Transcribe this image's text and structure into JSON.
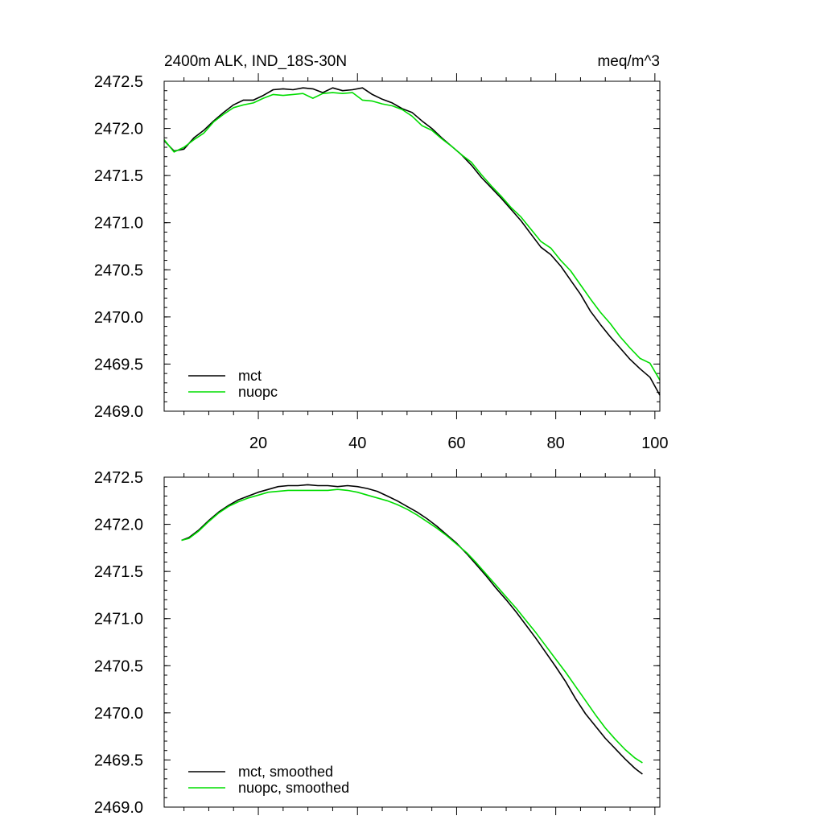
{
  "chart_data": [
    {
      "type": "line",
      "title_left": "2400m ALK, IND_18S-30N",
      "title_right": "meq/m^3",
      "xlim": [
        1,
        101
      ],
      "ylim": [
        2469.0,
        2472.5
      ],
      "xticks": [
        20,
        40,
        60,
        80,
        100
      ],
      "yticks": [
        2469.0,
        2469.5,
        2470.0,
        2470.5,
        2471.0,
        2471.5,
        2472.0,
        2472.5
      ],
      "ytick_labels": [
        "2469.0",
        "2469.5",
        "2470.0",
        "2470.5",
        "2471.0",
        "2471.5",
        "2472.0",
        "2472.5"
      ],
      "xtick_labels": [
        "20",
        "40",
        "60",
        "80",
        "100"
      ],
      "legend_position": "bottom-left",
      "series": [
        {
          "name": "mct",
          "color": "#000000",
          "x": [
            1,
            3,
            5,
            7,
            9,
            11,
            13,
            15,
            17,
            19,
            21,
            23,
            25,
            27,
            29,
            31,
            33,
            35,
            37,
            39,
            41,
            43,
            45,
            47,
            49,
            51,
            53,
            55,
            57,
            59,
            61,
            63,
            65,
            67,
            69,
            71,
            73,
            75,
            77,
            79,
            81,
            83,
            85,
            87,
            89,
            91,
            93,
            95,
            97,
            99,
            101
          ],
          "y": [
            2471.87,
            2471.76,
            2471.78,
            2471.9,
            2471.98,
            2472.08,
            2472.17,
            2472.25,
            2472.3,
            2472.3,
            2472.35,
            2472.41,
            2472.42,
            2472.41,
            2472.43,
            2472.42,
            2472.38,
            2472.43,
            2472.4,
            2472.41,
            2472.43,
            2472.36,
            2472.31,
            2472.27,
            2472.21,
            2472.17,
            2472.08,
            2472.0,
            2471.9,
            2471.81,
            2471.72,
            2471.61,
            2471.48,
            2471.37,
            2471.26,
            2471.14,
            2471.02,
            2470.88,
            2470.74,
            2470.66,
            2470.54,
            2470.39,
            2470.24,
            2470.06,
            2469.92,
            2469.79,
            2469.67,
            2469.55,
            2469.45,
            2469.36,
            2469.17
          ]
        },
        {
          "name": "nuopc",
          "color": "#00dd00",
          "x": [
            1,
            3,
            5,
            7,
            9,
            11,
            13,
            15,
            17,
            19,
            21,
            23,
            25,
            27,
            29,
            31,
            33,
            35,
            37,
            39,
            41,
            43,
            45,
            47,
            49,
            51,
            53,
            55,
            57,
            59,
            61,
            63,
            65,
            67,
            69,
            71,
            73,
            75,
            77,
            79,
            81,
            83,
            85,
            87,
            89,
            91,
            93,
            95,
            97,
            99,
            101
          ],
          "y": [
            2471.88,
            2471.75,
            2471.8,
            2471.88,
            2471.95,
            2472.07,
            2472.15,
            2472.22,
            2472.25,
            2472.27,
            2472.32,
            2472.36,
            2472.35,
            2472.36,
            2472.37,
            2472.32,
            2472.37,
            2472.38,
            2472.37,
            2472.38,
            2472.3,
            2472.29,
            2472.26,
            2472.24,
            2472.2,
            2472.13,
            2472.03,
            2471.98,
            2471.89,
            2471.81,
            2471.72,
            2471.64,
            2471.51,
            2471.39,
            2471.28,
            2471.16,
            2471.06,
            2470.93,
            2470.8,
            2470.73,
            2470.6,
            2470.49,
            2470.34,
            2470.19,
            2470.05,
            2469.93,
            2469.79,
            2469.67,
            2469.56,
            2469.51,
            2469.33
          ]
        }
      ]
    },
    {
      "type": "line",
      "xlim": [
        1,
        101
      ],
      "ylim": [
        2469.0,
        2472.5
      ],
      "xticks": [
        20,
        40,
        60,
        80,
        100
      ],
      "yticks": [
        2469.0,
        2469.5,
        2470.0,
        2470.5,
        2471.0,
        2471.5,
        2472.0,
        2472.5
      ],
      "ytick_labels": [
        "2469.0",
        "2469.5",
        "2470.0",
        "2470.5",
        "2471.0",
        "2471.5",
        "2472.0",
        "2472.5"
      ],
      "legend_position": "bottom-left",
      "series": [
        {
          "name": "mct, smoothed",
          "color": "#000000",
          "x": [
            4.5,
            6,
            8,
            10,
            12,
            14,
            16,
            18,
            20,
            22,
            24,
            26,
            28,
            30,
            32,
            34,
            36,
            38,
            40,
            42,
            44,
            46,
            48,
            50,
            52,
            54,
            56,
            58,
            60,
            62,
            64,
            66,
            68,
            70,
            72,
            74,
            76,
            78,
            80,
            82,
            84,
            86,
            88,
            90,
            92,
            94,
            96,
            97.5
          ],
          "y": [
            2471.83,
            2471.86,
            2471.94,
            2472.04,
            2472.13,
            2472.2,
            2472.26,
            2472.3,
            2472.34,
            2472.37,
            2472.4,
            2472.41,
            2472.41,
            2472.42,
            2472.41,
            2472.41,
            2472.4,
            2472.41,
            2472.4,
            2472.38,
            2472.35,
            2472.3,
            2472.25,
            2472.19,
            2472.13,
            2472.06,
            2471.98,
            2471.89,
            2471.8,
            2471.69,
            2471.57,
            2471.45,
            2471.32,
            2471.2,
            2471.07,
            2470.93,
            2470.79,
            2470.64,
            2470.49,
            2470.33,
            2470.15,
            2469.99,
            2469.86,
            2469.73,
            2469.62,
            2469.51,
            2469.41,
            2469.35
          ]
        },
        {
          "name": "nuopc, smoothed",
          "color": "#00dd00",
          "x": [
            4.5,
            6,
            8,
            10,
            12,
            14,
            16,
            18,
            20,
            22,
            24,
            26,
            28,
            30,
            32,
            34,
            36,
            38,
            40,
            42,
            44,
            46,
            48,
            50,
            52,
            54,
            56,
            58,
            60,
            62,
            64,
            66,
            68,
            70,
            72,
            74,
            76,
            78,
            80,
            82,
            84,
            86,
            88,
            90,
            92,
            94,
            96,
            97.5
          ],
          "y": [
            2471.83,
            2471.85,
            2471.93,
            2472.03,
            2472.12,
            2472.19,
            2472.24,
            2472.28,
            2472.31,
            2472.34,
            2472.35,
            2472.36,
            2472.36,
            2472.36,
            2472.36,
            2472.36,
            2472.37,
            2472.36,
            2472.34,
            2472.31,
            2472.28,
            2472.25,
            2472.21,
            2472.16,
            2472.1,
            2472.03,
            2471.96,
            2471.88,
            2471.79,
            2471.7,
            2471.59,
            2471.47,
            2471.35,
            2471.23,
            2471.11,
            2470.98,
            2470.85,
            2470.71,
            2470.57,
            2470.43,
            2470.28,
            2470.13,
            2469.98,
            2469.84,
            2469.72,
            2469.61,
            2469.52,
            2469.47
          ]
        }
      ]
    }
  ]
}
